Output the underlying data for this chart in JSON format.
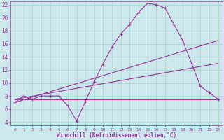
{
  "background_color": "#cce8ec",
  "grid_color": "#aacccc",
  "line_color": "#993399",
  "xlabel": "Windchill (Refroidissement éolien,°C)",
  "xlim": [
    -0.5,
    23.5
  ],
  "ylim": [
    3.5,
    22.5
  ],
  "yticks": [
    4,
    6,
    8,
    10,
    12,
    14,
    16,
    18,
    20,
    22
  ],
  "xticks": [
    0,
    1,
    2,
    3,
    4,
    5,
    6,
    7,
    8,
    9,
    10,
    11,
    12,
    13,
    14,
    15,
    16,
    17,
    18,
    19,
    20,
    21,
    22,
    23
  ],
  "curve1_x": [
    0,
    1,
    2,
    3,
    4,
    5,
    6,
    7,
    8,
    9,
    10,
    11,
    12,
    13,
    14,
    15,
    16,
    17,
    18,
    19,
    20,
    21,
    22,
    23
  ],
  "curve1_y": [
    7.0,
    8.0,
    7.5,
    8.0,
    8.0,
    8.0,
    6.5,
    4.2,
    7.2,
    10.2,
    13.0,
    15.5,
    17.5,
    19.0,
    20.8,
    22.2,
    22.0,
    21.5,
    19.0,
    16.5,
    13.0,
    9.5,
    8.5,
    7.5
  ],
  "curve2_x": [
    0,
    23
  ],
  "curve2_y": [
    7.0,
    16.5
  ],
  "curve3_x": [
    0,
    23
  ],
  "curve3_y": [
    7.5,
    13.0
  ],
  "curve4_x": [
    0,
    23
  ],
  "curve4_y": [
    7.5,
    7.5
  ]
}
